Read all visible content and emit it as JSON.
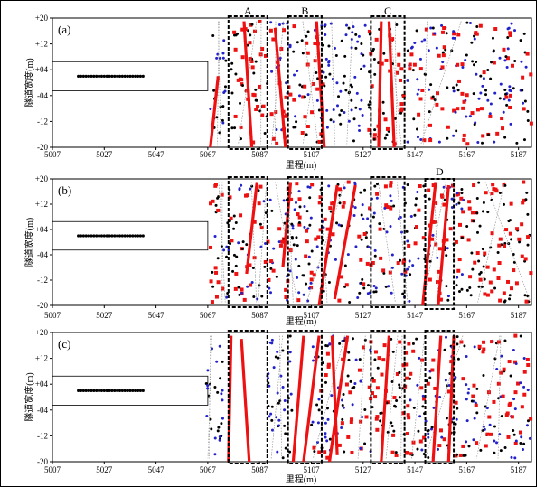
{
  "colors": {
    "black": "#000000",
    "red": "#ee1111",
    "blue": "#2222cc",
    "gray": "#999999"
  },
  "chart_data": {
    "type": "scatter",
    "xlabel": "里程(m)",
    "ylabel": "隧道宽度(m)",
    "xlim": [
      5007,
      5192
    ],
    "ylim": [
      -20,
      20
    ],
    "xticks": [
      "5007",
      "5027",
      "5047",
      "5067",
      "5087",
      "5107",
      "5127",
      "5147",
      "5167",
      "5187"
    ],
    "yticks": [
      "+20",
      "+12",
      "+04",
      "-04",
      "-12",
      "-20"
    ],
    "panels": [
      {
        "label": "(a)",
        "rect": {
          "x0": 5007,
          "x1": 5067,
          "y0": -2.5,
          "y1": 6.5
        },
        "row": {
          "x0": 5017,
          "x1": 5042,
          "y": 2,
          "n": 26
        },
        "regions": [
          {
            "name": "A",
            "x0": 5075,
            "x1": 5090
          },
          {
            "name": "B",
            "x0": 5098,
            "x1": 5111
          },
          {
            "name": "C",
            "x0": 5130,
            "x1": 5143
          }
        ],
        "red_lines": [
          {
            "x": [
              5081,
              5084
            ],
            "y": [
              19,
              -20
            ]
          },
          {
            "x": [
              5093,
              5097
            ],
            "y": [
              17,
              -20
            ]
          },
          {
            "x": [
              5109,
              5112
            ],
            "y": [
              19,
              -20
            ]
          },
          {
            "x": [
              5137,
              5139
            ],
            "y": [
              19,
              -20
            ]
          },
          {
            "x": [
              5134,
              5133
            ],
            "y": [
              19,
              -20
            ]
          },
          {
            "x": [
              5071,
              5068
            ],
            "y": [
              2,
              -20
            ]
          }
        ],
        "point_bands": [
          {
            "x0": 5068,
            "x1": 5074,
            "colors": [
              "blue",
              "black"
            ]
          },
          {
            "x0": 5076,
            "x1": 5090,
            "colors": [
              "black",
              "red"
            ]
          },
          {
            "x0": 5091,
            "x1": 5099,
            "colors": [
              "red",
              "blue"
            ]
          },
          {
            "x0": 5100,
            "x1": 5112,
            "colors": [
              "black",
              "red",
              "blue"
            ]
          },
          {
            "x0": 5112,
            "x1": 5128,
            "colors": [
              "black",
              "blue"
            ]
          },
          {
            "x0": 5129,
            "x1": 5143,
            "colors": [
              "red",
              "black"
            ]
          },
          {
            "x0": 5144,
            "x1": 5192,
            "colors": [
              "blue",
              "black",
              "red"
            ]
          }
        ]
      },
      {
        "label": "(b)",
        "rect": {
          "x0": 5007,
          "x1": 5067,
          "y0": -2.5,
          "y1": 6.5
        },
        "row": {
          "x0": 5017,
          "x1": 5042,
          "y": 2,
          "n": 26
        },
        "regions": [
          {
            "name": "D",
            "x0": 5151,
            "x1": 5162
          }
        ],
        "red_lines": [
          {
            "x": [
              5086,
              5082
            ],
            "y": [
              19,
              -10
            ]
          },
          {
            "x": [
              5099,
              5096
            ],
            "y": [
              19,
              -8
            ]
          },
          {
            "x": [
              5117,
              5110
            ],
            "y": [
              18,
              -20
            ]
          },
          {
            "x": [
              5124,
              5116
            ],
            "y": [
              18,
              -18
            ]
          },
          {
            "x": [
              5155,
              5150
            ],
            "y": [
              19,
              -20
            ]
          },
          {
            "x": [
              5160,
              5156
            ],
            "y": [
              18,
              -20
            ]
          }
        ],
        "point_bands": [
          {
            "x0": 5068,
            "x1": 5075,
            "colors": [
              "black",
              "blue",
              "red"
            ]
          },
          {
            "x0": 5075,
            "x1": 5090,
            "colors": [
              "red",
              "blue",
              "black"
            ]
          },
          {
            "x0": 5090,
            "x1": 5104,
            "colors": [
              "red",
              "black",
              "blue"
            ]
          },
          {
            "x0": 5104,
            "x1": 5130,
            "colors": [
              "red",
              "black",
              "blue"
            ]
          },
          {
            "x0": 5130,
            "x1": 5145,
            "colors": [
              "red",
              "black",
              "blue"
            ]
          },
          {
            "x0": 5145,
            "x1": 5166,
            "colors": [
              "red",
              "black",
              "blue"
            ]
          },
          {
            "x0": 5167,
            "x1": 5192,
            "colors": [
              "red",
              "black"
            ]
          }
        ]
      },
      {
        "label": "(c)",
        "rect": {
          "x0": 5007,
          "x1": 5067,
          "y0": -2.5,
          "y1": 6.5
        },
        "row": {
          "x0": 5017,
          "x1": 5042,
          "y": 2,
          "n": 26
        },
        "regions": [],
        "red_lines": [
          {
            "x": [
              5076,
              5075
            ],
            "y": [
              19,
              -20
            ]
          },
          {
            "x": [
              5080,
              5083
            ],
            "y": [
              18,
              -20
            ]
          },
          {
            "x": [
              5104,
              5100
            ],
            "y": [
              19,
              -20
            ]
          },
          {
            "x": [
              5110,
              5104
            ],
            "y": [
              19,
              -20
            ]
          },
          {
            "x": [
              5115,
              5117
            ],
            "y": [
              19,
              -18
            ]
          },
          {
            "x": [
              5121,
              5114
            ],
            "y": [
              19,
              -20
            ]
          },
          {
            "x": [
              5137,
              5134
            ],
            "y": [
              19,
              -20
            ]
          },
          {
            "x": [
              5162,
              5160
            ],
            "y": [
              19,
              -20
            ]
          },
          {
            "x": [
              5157,
              5154
            ],
            "y": [
              19,
              -20
            ]
          }
        ],
        "point_bands": [
          {
            "x0": 5066,
            "x1": 5073,
            "colors": [
              "blue",
              "black"
            ]
          },
          {
            "x0": 5090,
            "x1": 5100,
            "colors": [
              "black",
              "blue"
            ]
          },
          {
            "x0": 5107,
            "x1": 5130,
            "colors": [
              "black",
              "red",
              "blue"
            ]
          },
          {
            "x0": 5130,
            "x1": 5145,
            "colors": [
              "red",
              "black"
            ]
          },
          {
            "x0": 5145,
            "x1": 5168,
            "colors": [
              "black",
              "red",
              "blue"
            ]
          },
          {
            "x0": 5169,
            "x1": 5192,
            "colors": [
              "red",
              "black",
              "blue"
            ]
          }
        ]
      }
    ],
    "dashed_boxes_span_all": [
      {
        "name": "A-col",
        "x0": 5075,
        "x1": 5090
      },
      {
        "name": "B-col",
        "x0": 5098,
        "x1": 5111
      },
      {
        "name": "C-col",
        "x0": 5130,
        "x1": 5143
      },
      {
        "name": "D-col",
        "x0": 5151,
        "x1": 5162
      }
    ]
  }
}
